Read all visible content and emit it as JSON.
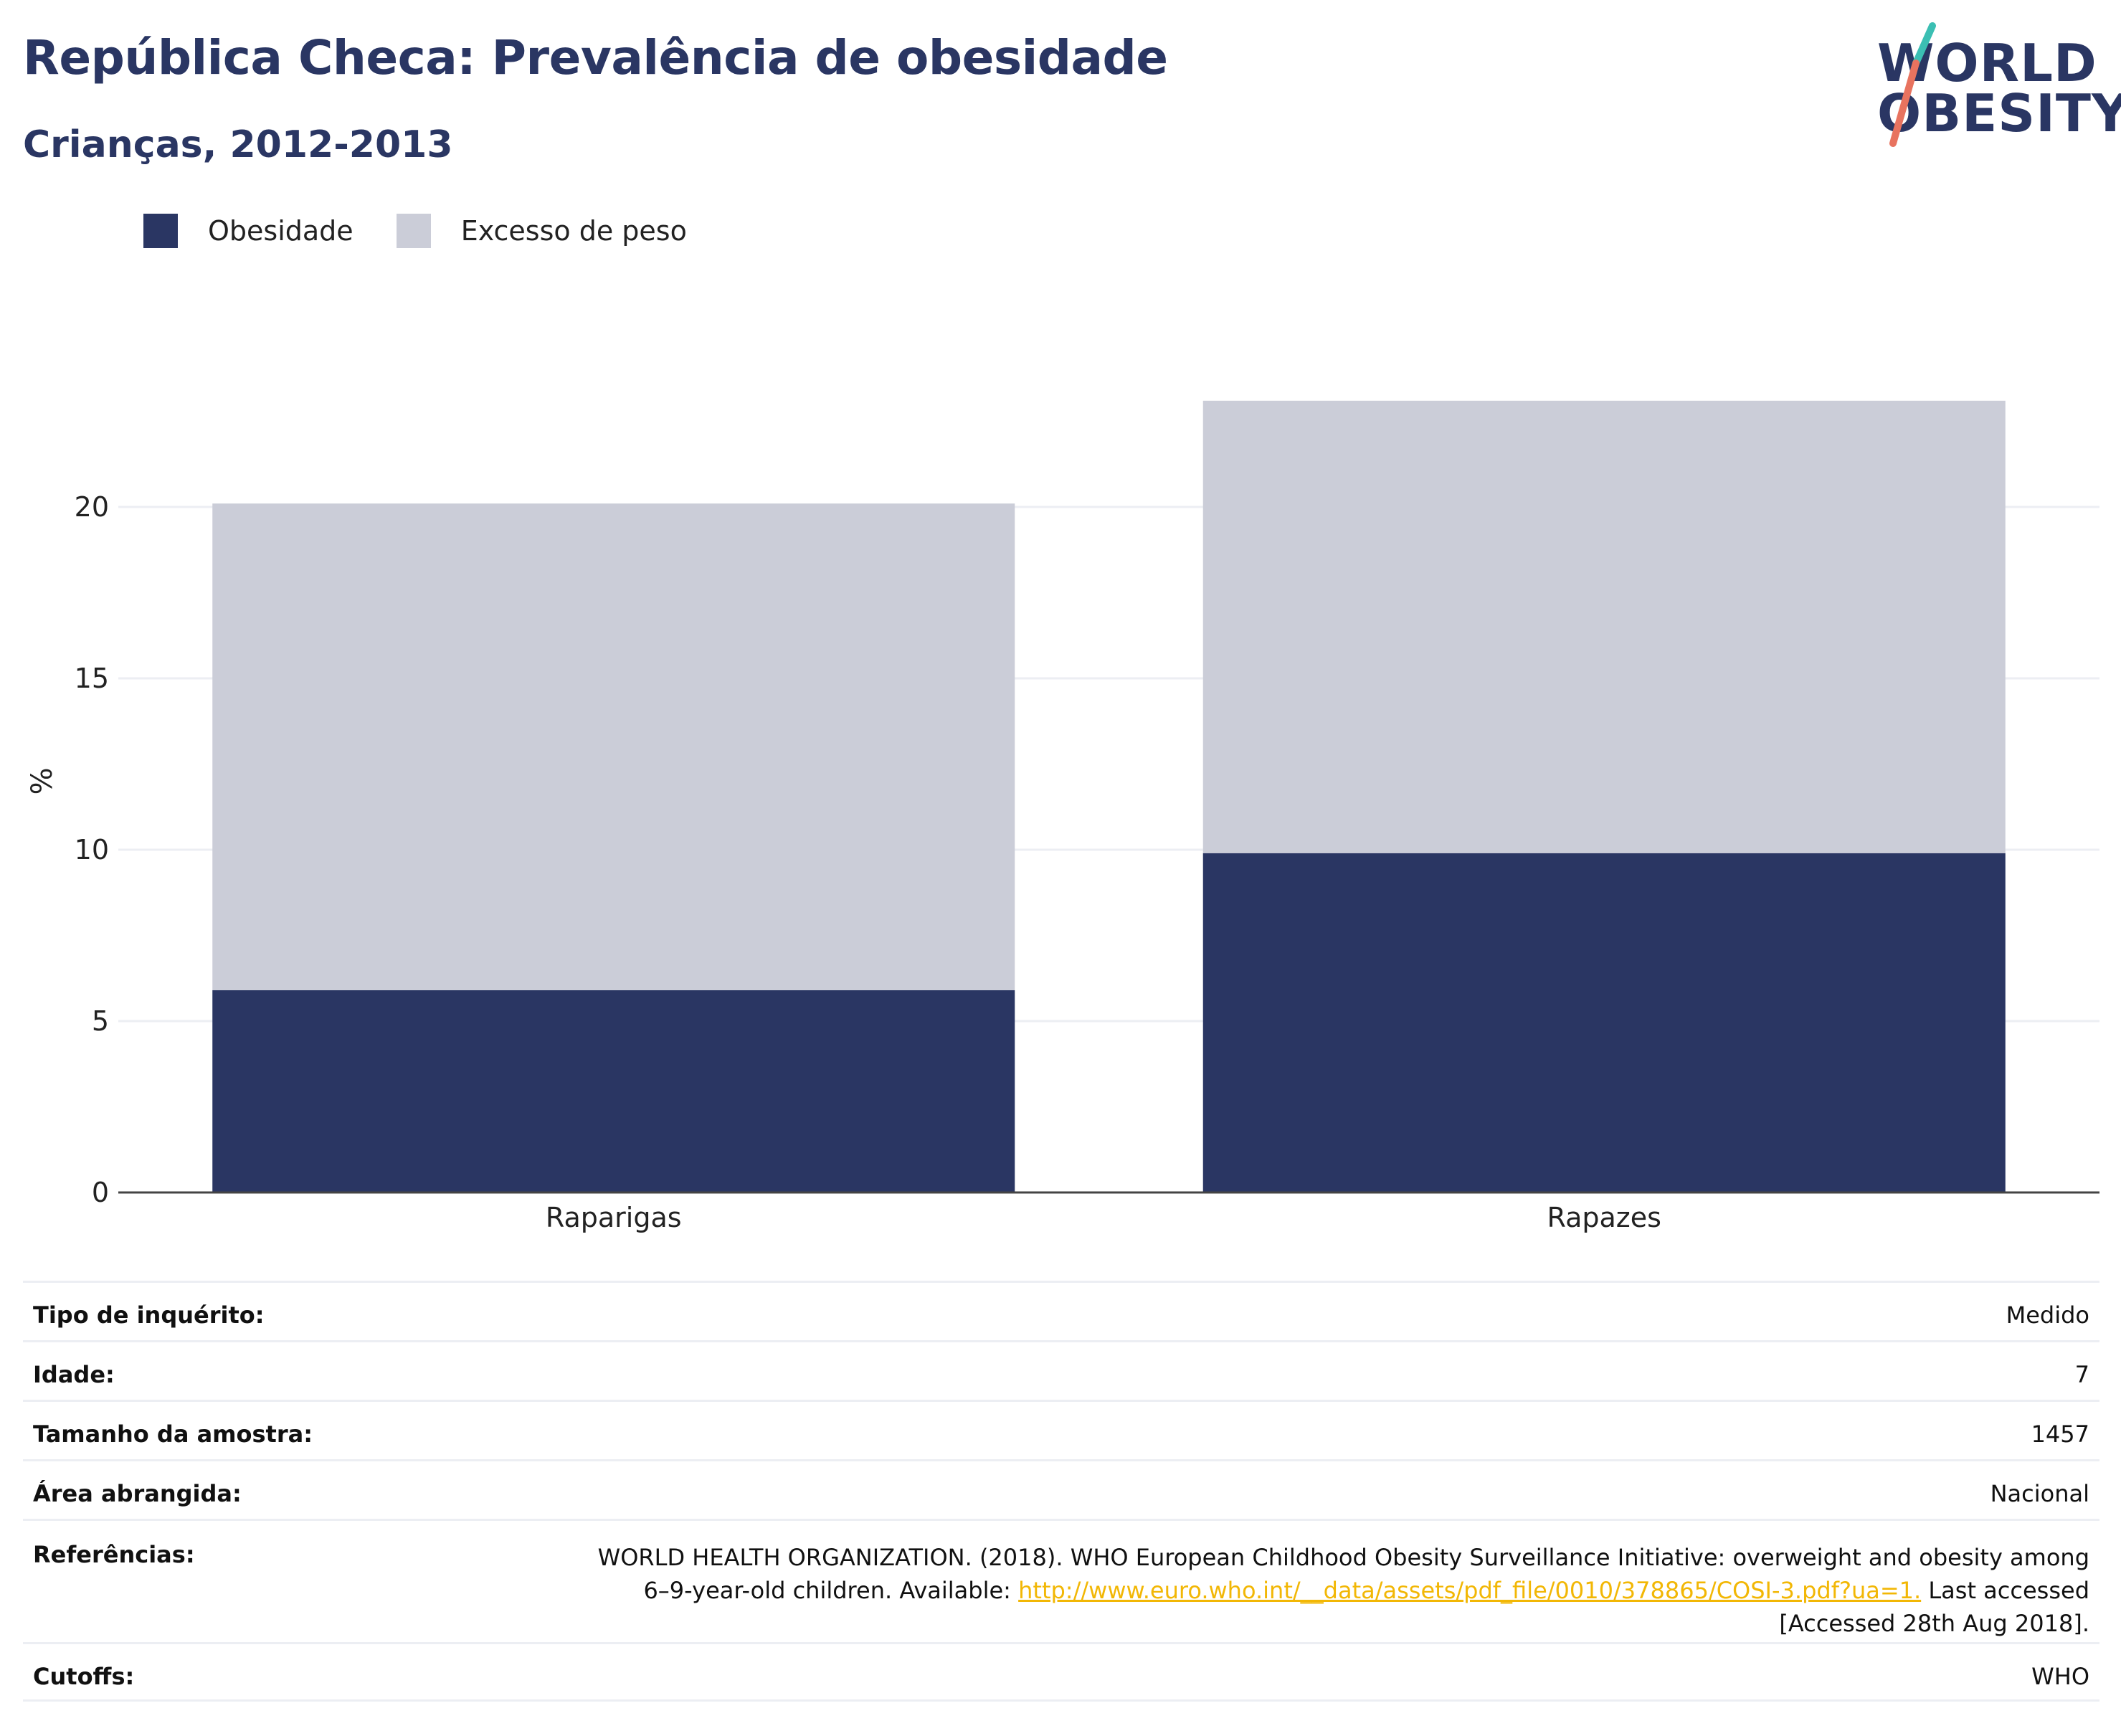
{
  "header": {
    "title": "República Checa: Prevalência de obesidade",
    "subtitle": "Crianças, 2012-2013"
  },
  "logo": {
    "line1": "WORLD",
    "line2": "OBESITY",
    "accent_teal": "#3bbfb3",
    "accent_coral": "#e8735f",
    "text_color": "#2a3663"
  },
  "chart_data": {
    "type": "bar",
    "stacked": true,
    "categories": [
      "Raparigas",
      "Rapazes"
    ],
    "series": [
      {
        "name": "Obesidade",
        "values": [
          5.9,
          9.9
        ],
        "color": "#2a3663"
      },
      {
        "name": "Excesso de peso",
        "values": [
          14.2,
          13.2
        ],
        "color": "#cbcdd8"
      }
    ],
    "ylabel": "%",
    "yticks": [
      0,
      5,
      10,
      15,
      20
    ],
    "ylim": [
      0,
      23.1
    ],
    "grid": true,
    "legend_position": "top-left"
  },
  "info": {
    "survey_type": {
      "label": "Tipo de inquérito:",
      "value": "Medido"
    },
    "age": {
      "label": "Idade:",
      "value": "7"
    },
    "sample_size": {
      "label": "Tamanho da amostra:",
      "value": "1457"
    },
    "area": {
      "label": "Área abrangida:",
      "value": "Nacional"
    },
    "references": {
      "label": "Referências:",
      "line1": "WORLD HEALTH ORGANIZATION. (2018). WHO European Childhood Obesity Surveillance Initiative: overweight and obesity among",
      "line2_prefix": "6–9-year-old children. Available: ",
      "link": "http://www.euro.who.int/__data/assets/pdf_file/0010/378865/COSI-3.pdf?ua=1.",
      "line2_suffix": " Last accessed",
      "line3": "[Accessed 28th Aug 2018]."
    },
    "cutoffs": {
      "label": "Cutoffs:",
      "value": "WHO"
    }
  }
}
